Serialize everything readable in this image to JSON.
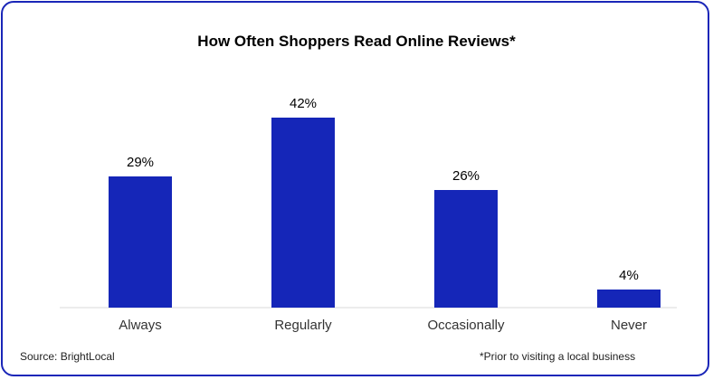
{
  "chart_data": {
    "type": "bar",
    "title": "How Often Shoppers Read Online Reviews*",
    "categories": [
      "Always",
      "Regularly",
      "Occasionally",
      "Never"
    ],
    "values": [
      29,
      42,
      26,
      4
    ],
    "value_labels": [
      "29%",
      "42%",
      "26%",
      "4%"
    ],
    "xlabel": "",
    "ylabel": "",
    "ylim": [
      0,
      46
    ],
    "grid": false,
    "bar_color": "#1526b8"
  },
  "footer": {
    "source": "Source: BrightLocal",
    "footnote": "*Prior to visiting a local business"
  },
  "colors": {
    "border": "#1a26b8",
    "bar": "#1526b8",
    "baseline": "#d9d9d9"
  }
}
